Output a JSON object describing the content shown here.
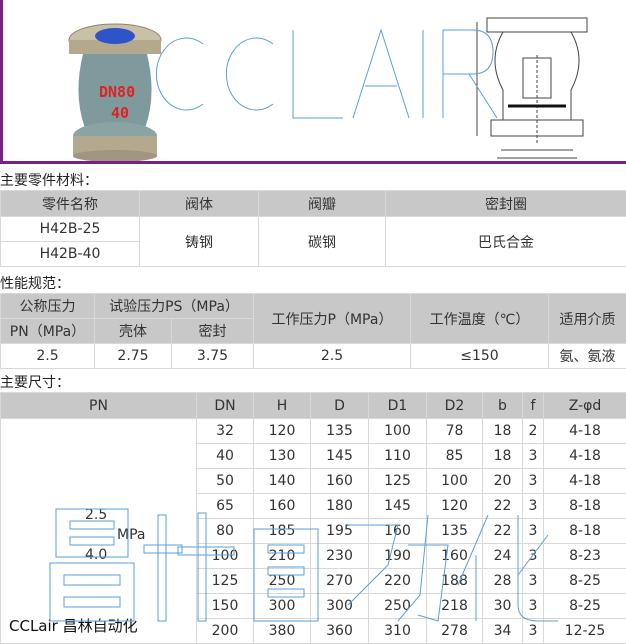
{
  "hero": {
    "watermark": "CCLAIR",
    "valve_marking_1": "DN80",
    "valve_marking_2": "40",
    "colors": {
      "frame": "#7a1f86",
      "watermark": "#5aa0d8",
      "flange": "#b8ae98",
      "body": "#7e9a9c"
    }
  },
  "materials": {
    "label": "主要零件材料：",
    "headers": [
      "零件名称",
      "阀体",
      "阀瓣",
      "密封圈"
    ],
    "models": [
      "H42B-25",
      "H42B-40"
    ],
    "body": "铸钢",
    "disc": "碳钢",
    "seal": "巴氏合金"
  },
  "performance": {
    "label": "性能规范：",
    "h_pn_1": "公称压力",
    "h_pn_2": "PN（MPa）",
    "h_test": "试验压力PS（MPa）",
    "h_shell": "壳体",
    "h_seal": "密封",
    "h_work": "工作压力P（MPa）",
    "h_temp": "工作温度（℃）",
    "h_medium": "适用介质",
    "row": [
      "2.5",
      "2.75",
      "3.75",
      "2.5",
      "≤150",
      "氨、氨液"
    ]
  },
  "dimensions": {
    "label": "主要尺寸：",
    "headers": [
      "PN",
      "DN",
      "H",
      "D",
      "D1",
      "D2",
      "b",
      "f",
      "Z-φd"
    ],
    "pn_values": [
      "2.5",
      "4.0"
    ],
    "pn_unit": "MPa",
    "rows": [
      [
        "32",
        "120",
        "135",
        "100",
        "78",
        "18",
        "2",
        "4-18"
      ],
      [
        "40",
        "130",
        "145",
        "110",
        "85",
        "18",
        "3",
        "4-18"
      ],
      [
        "50",
        "140",
        "160",
        "125",
        "100",
        "20",
        "3",
        "4-18"
      ],
      [
        "65",
        "160",
        "180",
        "145",
        "120",
        "22",
        "3",
        "8-18"
      ],
      [
        "80",
        "185",
        "195",
        "160",
        "135",
        "22",
        "3",
        "8-18"
      ],
      [
        "100",
        "210",
        "230",
        "190",
        "160",
        "24",
        "3",
        "8-23"
      ],
      [
        "125",
        "250",
        "270",
        "220",
        "188",
        "28",
        "3",
        "8-25"
      ],
      [
        "150",
        "300",
        "300",
        "250",
        "218",
        "30",
        "3",
        "8-25"
      ],
      [
        "200",
        "380",
        "360",
        "310",
        "278",
        "34",
        "3",
        "12-25"
      ]
    ]
  },
  "watermarks": {
    "big": "昌林自动化",
    "brand": "CCLair 昌林自动化"
  }
}
